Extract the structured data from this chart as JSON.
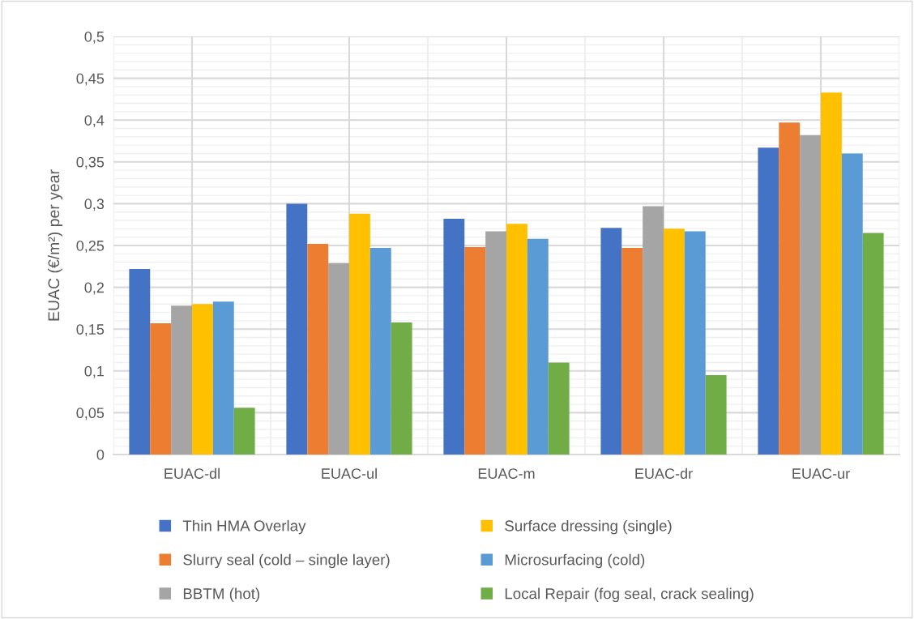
{
  "chart_data": {
    "type": "bar",
    "ylabel": "EUAC (€/m²) per year",
    "categories": [
      "EUAC-dl",
      "EUAC-ul",
      "EUAC-m",
      "EUAC-dr",
      "EUAC-ur"
    ],
    "series": [
      {
        "name": "Thin HMA Overlay",
        "color": "#4472c4",
        "values": [
          0.222,
          0.3,
          0.282,
          0.271,
          0.367
        ]
      },
      {
        "name": "Slurry seal (cold – single layer)",
        "color": "#ed7d31",
        "values": [
          0.157,
          0.252,
          0.248,
          0.247,
          0.397
        ]
      },
      {
        "name": "BBTM (hot)",
        "color": "#a5a5a5",
        "values": [
          0.178,
          0.229,
          0.267,
          0.297,
          0.382
        ]
      },
      {
        "name": "Surface dressing (single)",
        "color": "#ffc000",
        "values": [
          0.18,
          0.288,
          0.276,
          0.27,
          0.433
        ]
      },
      {
        "name": "Microsurfacing (cold)",
        "color": "#5b9bd5",
        "values": [
          0.183,
          0.247,
          0.258,
          0.267,
          0.36
        ]
      },
      {
        "name": "Local Repair (fog seal, crack sealing)",
        "color": "#70ad47",
        "values": [
          0.056,
          0.158,
          0.11,
          0.095,
          0.265
        ]
      }
    ],
    "ylim": [
      0,
      0.5
    ],
    "yticks": [
      {
        "value": 0,
        "label": "0"
      },
      {
        "value": 0.05,
        "label": "0,05"
      },
      {
        "value": 0.1,
        "label": "0,1"
      },
      {
        "value": 0.15,
        "label": "0,15"
      },
      {
        "value": 0.2,
        "label": "0,2"
      },
      {
        "value": 0.25,
        "label": "0,25"
      },
      {
        "value": 0.3,
        "label": "0,3"
      },
      {
        "value": 0.35,
        "label": "0,35"
      },
      {
        "value": 0.4,
        "label": "0,4"
      },
      {
        "value": 0.45,
        "label": "0,45"
      },
      {
        "value": 0.5,
        "label": "0,5"
      }
    ],
    "grid": true,
    "legend": "bottom"
  }
}
